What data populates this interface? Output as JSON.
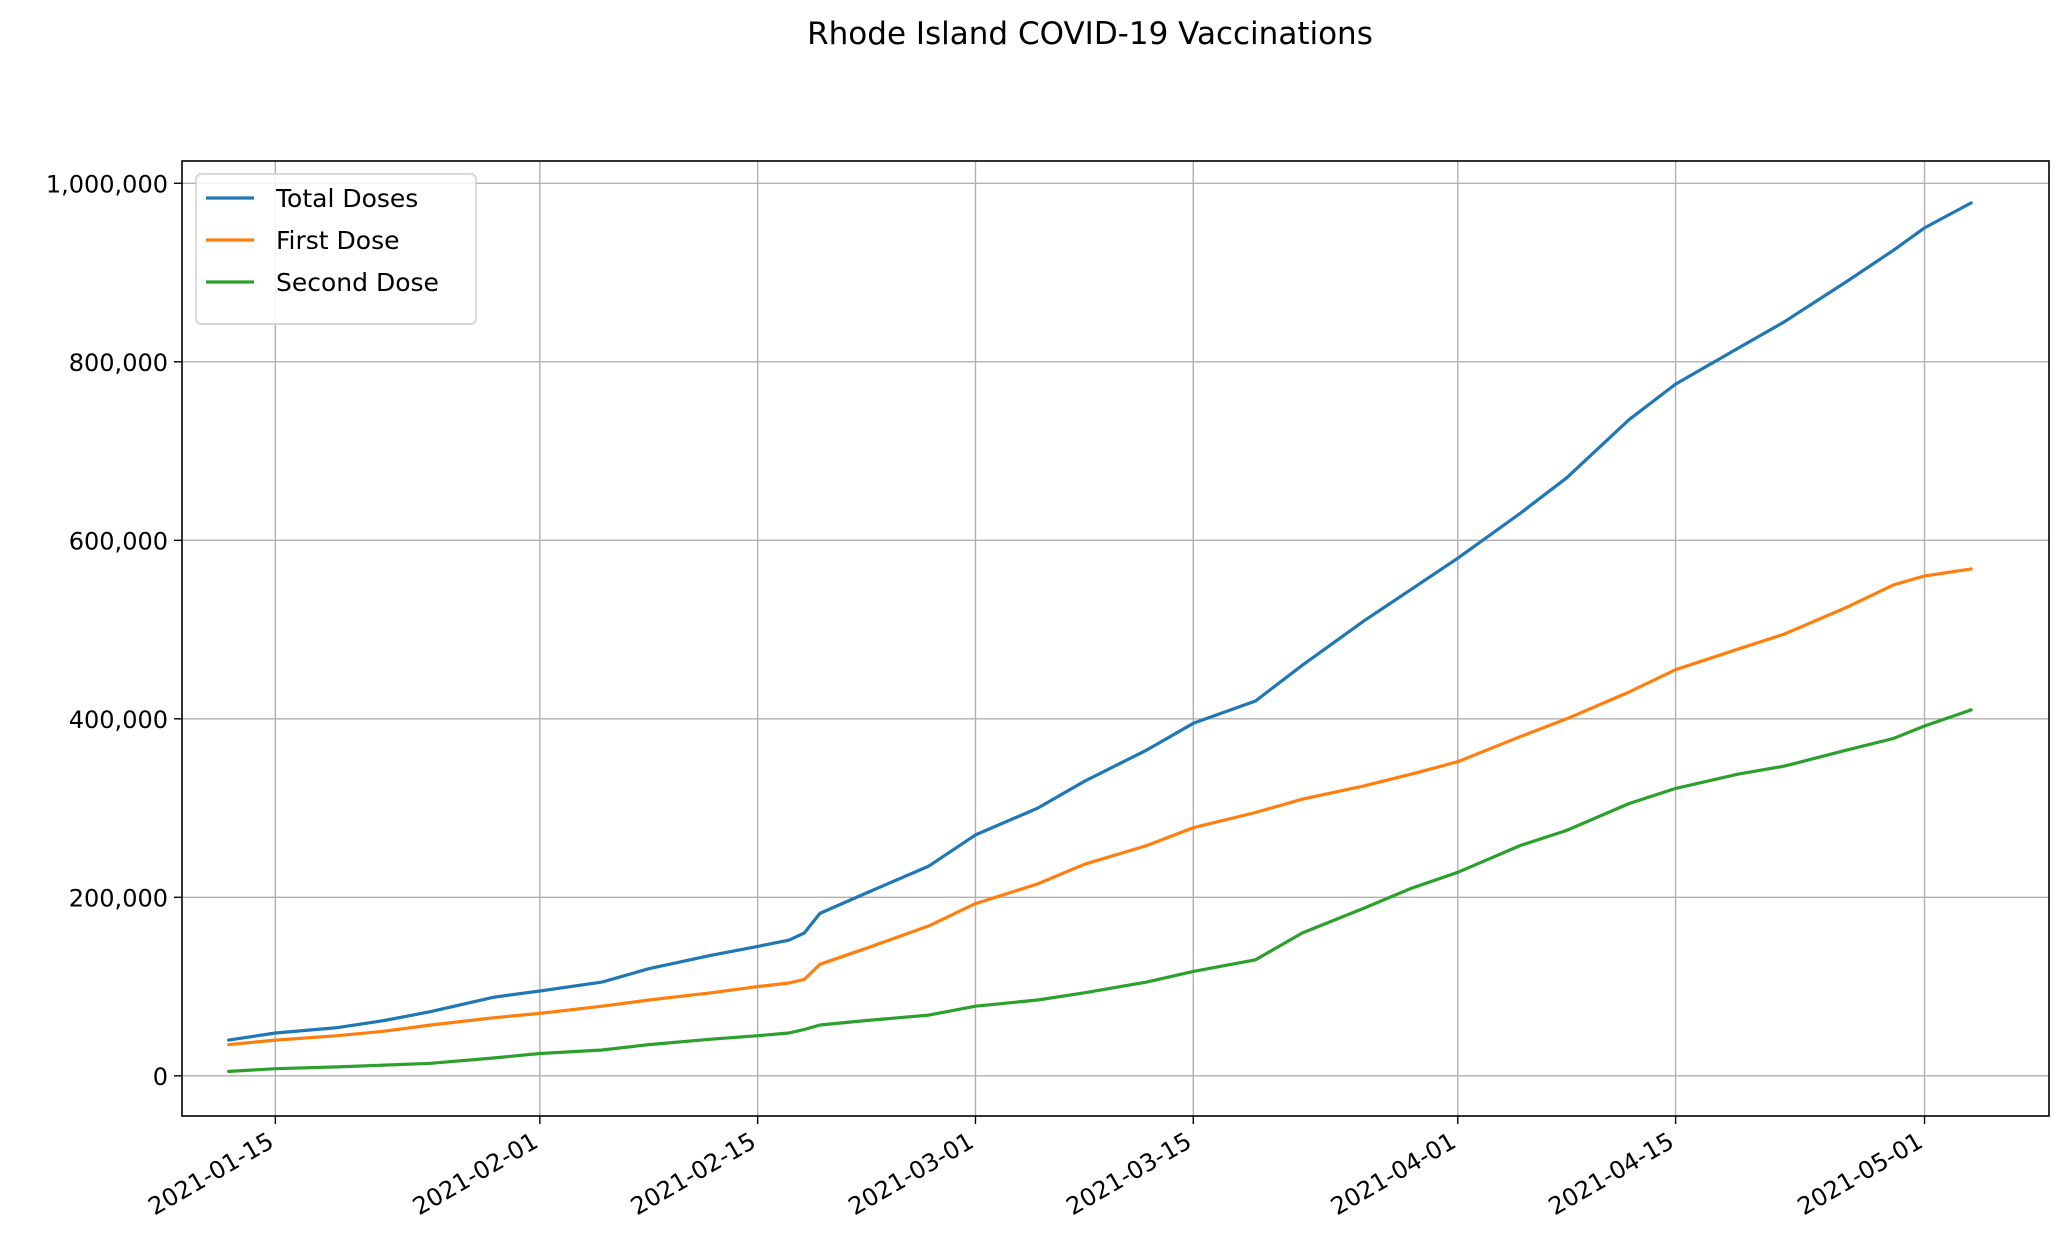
{
  "chart_data": {
    "type": "line",
    "title": "Rhode Island COVID-19 Vaccinations",
    "xlabel": "",
    "ylabel": "",
    "grid": true,
    "legend_position": "top-left",
    "xlim": [
      "2021-01-09",
      "2021-05-09"
    ],
    "ylim": [
      -45000,
      1025000
    ],
    "x_ticks": [
      "2021-01-15",
      "2021-02-01",
      "2021-02-15",
      "2021-03-01",
      "2021-03-15",
      "2021-04-01",
      "2021-04-15",
      "2021-05-01"
    ],
    "y_ticks": [
      0,
      200000,
      400000,
      600000,
      800000,
      1000000
    ],
    "y_tick_labels": [
      "0",
      "200,000",
      "400,000",
      "600,000",
      "800,000",
      "1,000,000"
    ],
    "series": [
      {
        "name": "Total Doses",
        "color": "#1f77b4",
        "points": [
          [
            "2021-01-12",
            40000
          ],
          [
            "2021-01-15",
            48000
          ],
          [
            "2021-01-19",
            54000
          ],
          [
            "2021-01-22",
            62000
          ],
          [
            "2021-01-25",
            72000
          ],
          [
            "2021-01-29",
            88000
          ],
          [
            "2021-02-01",
            95000
          ],
          [
            "2021-02-05",
            105000
          ],
          [
            "2021-02-08",
            120000
          ],
          [
            "2021-02-12",
            135000
          ],
          [
            "2021-02-15",
            145000
          ],
          [
            "2021-02-17",
            152000
          ],
          [
            "2021-02-18",
            160000
          ],
          [
            "2021-02-19",
            182000
          ],
          [
            "2021-02-22",
            205000
          ],
          [
            "2021-02-26",
            235000
          ],
          [
            "2021-03-01",
            270000
          ],
          [
            "2021-03-05",
            300000
          ],
          [
            "2021-03-08",
            330000
          ],
          [
            "2021-03-12",
            365000
          ],
          [
            "2021-03-15",
            395000
          ],
          [
            "2021-03-19",
            420000
          ],
          [
            "2021-03-22",
            460000
          ],
          [
            "2021-03-26",
            510000
          ],
          [
            "2021-03-29",
            545000
          ],
          [
            "2021-04-01",
            580000
          ],
          [
            "2021-04-05",
            630000
          ],
          [
            "2021-04-08",
            670000
          ],
          [
            "2021-04-12",
            735000
          ],
          [
            "2021-04-15",
            775000
          ],
          [
            "2021-04-19",
            815000
          ],
          [
            "2021-04-22",
            845000
          ],
          [
            "2021-04-26",
            890000
          ],
          [
            "2021-04-29",
            925000
          ],
          [
            "2021-05-01",
            950000
          ],
          [
            "2021-05-04",
            978000
          ]
        ]
      },
      {
        "name": "First Dose",
        "color": "#ff7f0e",
        "points": [
          [
            "2021-01-12",
            35000
          ],
          [
            "2021-01-15",
            40000
          ],
          [
            "2021-01-19",
            45000
          ],
          [
            "2021-01-22",
            50000
          ],
          [
            "2021-01-25",
            57000
          ],
          [
            "2021-01-29",
            65000
          ],
          [
            "2021-02-01",
            70000
          ],
          [
            "2021-02-05",
            78000
          ],
          [
            "2021-02-08",
            85000
          ],
          [
            "2021-02-12",
            93000
          ],
          [
            "2021-02-15",
            100000
          ],
          [
            "2021-02-17",
            104000
          ],
          [
            "2021-02-18",
            108000
          ],
          [
            "2021-02-19",
            125000
          ],
          [
            "2021-02-22",
            143000
          ],
          [
            "2021-02-26",
            168000
          ],
          [
            "2021-03-01",
            193000
          ],
          [
            "2021-03-05",
            215000
          ],
          [
            "2021-03-08",
            237000
          ],
          [
            "2021-03-12",
            258000
          ],
          [
            "2021-03-15",
            278000
          ],
          [
            "2021-03-19",
            295000
          ],
          [
            "2021-03-22",
            310000
          ],
          [
            "2021-03-26",
            325000
          ],
          [
            "2021-03-29",
            338000
          ],
          [
            "2021-04-01",
            352000
          ],
          [
            "2021-04-05",
            380000
          ],
          [
            "2021-04-08",
            400000
          ],
          [
            "2021-04-12",
            430000
          ],
          [
            "2021-04-15",
            455000
          ],
          [
            "2021-04-19",
            478000
          ],
          [
            "2021-04-22",
            495000
          ],
          [
            "2021-04-26",
            525000
          ],
          [
            "2021-04-29",
            550000
          ],
          [
            "2021-05-01",
            560000
          ],
          [
            "2021-05-04",
            568000
          ]
        ]
      },
      {
        "name": "Second Dose",
        "color": "#2ca02c",
        "points": [
          [
            "2021-01-12",
            5000
          ],
          [
            "2021-01-15",
            8000
          ],
          [
            "2021-01-19",
            10000
          ],
          [
            "2021-01-22",
            12000
          ],
          [
            "2021-01-25",
            14000
          ],
          [
            "2021-01-29",
            20000
          ],
          [
            "2021-02-01",
            25000
          ],
          [
            "2021-02-05",
            29000
          ],
          [
            "2021-02-08",
            35000
          ],
          [
            "2021-02-12",
            41000
          ],
          [
            "2021-02-15",
            45000
          ],
          [
            "2021-02-17",
            48000
          ],
          [
            "2021-02-18",
            52000
          ],
          [
            "2021-02-19",
            57000
          ],
          [
            "2021-02-22",
            62000
          ],
          [
            "2021-02-26",
            68000
          ],
          [
            "2021-03-01",
            78000
          ],
          [
            "2021-03-05",
            85000
          ],
          [
            "2021-03-08",
            93000
          ],
          [
            "2021-03-12",
            105000
          ],
          [
            "2021-03-15",
            117000
          ],
          [
            "2021-03-19",
            130000
          ],
          [
            "2021-03-22",
            160000
          ],
          [
            "2021-03-26",
            188000
          ],
          [
            "2021-03-29",
            210000
          ],
          [
            "2021-04-01",
            228000
          ],
          [
            "2021-04-05",
            258000
          ],
          [
            "2021-04-08",
            275000
          ],
          [
            "2021-04-12",
            305000
          ],
          [
            "2021-04-15",
            322000
          ],
          [
            "2021-04-19",
            338000
          ],
          [
            "2021-04-22",
            347000
          ],
          [
            "2021-04-26",
            365000
          ],
          [
            "2021-04-29",
            378000
          ],
          [
            "2021-05-01",
            392000
          ],
          [
            "2021-05-04",
            410000
          ]
        ]
      }
    ]
  }
}
